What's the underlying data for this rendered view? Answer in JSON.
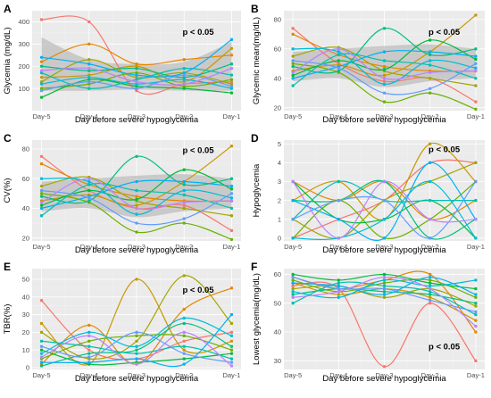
{
  "figure": {
    "days": [
      "Day-5",
      "Day-4",
      "Day-3",
      "Day-2",
      "Day-1"
    ],
    "palette": [
      "#F8766D",
      "#E58700",
      "#C99800",
      "#A3A500",
      "#6BB100",
      "#00BA38",
      "#00BF7D",
      "#00C0AF",
      "#00BCD8",
      "#00B0F6",
      "#619CFF",
      "#B983FF",
      "#E76BF3",
      "#FD61D1",
      "#FF67A4",
      "#9590FF",
      "#39B600",
      "#D89000"
    ]
  },
  "chart_data": [
    {
      "panel": "A",
      "type": "line",
      "ylabel": "Glycemia (mg/dL)",
      "xlabel": "Day before severe hypoglycemia",
      "x_ticks": [
        "Day-5",
        "Day-4",
        "Day-3",
        "Day-2",
        "Day-1"
      ],
      "ylim": [
        0,
        450
      ],
      "y_ticks": [
        100,
        200,
        300,
        400
      ],
      "annotation": "p < 0.05",
      "band": {
        "lower": [
          90,
          90,
          95,
          90,
          90
        ],
        "upper": [
          330,
          230,
          210,
          220,
          310
        ]
      },
      "series": [
        {
          "values": [
            410,
            400,
            90,
            120,
            130
          ]
        },
        {
          "values": [
            220,
            300,
            210,
            230,
            250
          ]
        },
        {
          "values": [
            150,
            160,
            200,
            130,
            280
          ]
        },
        {
          "values": [
            130,
            230,
            150,
            170,
            120
          ]
        },
        {
          "values": [
            100,
            120,
            170,
            110,
            140
          ]
        },
        {
          "values": [
            60,
            140,
            110,
            100,
            80
          ]
        },
        {
          "values": [
            200,
            180,
            190,
            150,
            210
          ]
        },
        {
          "values": [
            170,
            100,
            140,
            190,
            160
          ]
        },
        {
          "values": [
            120,
            150,
            120,
            140,
            100
          ]
        },
        {
          "values": [
            240,
            210,
            160,
            170,
            320
          ]
        },
        {
          "values": [
            90,
            130,
            100,
            160,
            110
          ]
        },
        {
          "values": [
            180,
            190,
            130,
            120,
            190
          ]
        }
      ]
    },
    {
      "panel": "B",
      "type": "line",
      "ylabel": "Glycemic mean(mg/dL)",
      "xlabel": "Day before severe hypoglycemia",
      "x_ticks": [
        "Day-5",
        "Day-4",
        "Day-3",
        "Day-2",
        "Day-1"
      ],
      "ylim": [
        18,
        86
      ],
      "y_ticks": [
        20,
        40,
        60,
        80
      ],
      "annotation": "p < 0.05",
      "band": {
        "lower": [
          38,
          40,
          34,
          38,
          40
        ],
        "upper": [
          58,
          60,
          62,
          63,
          60
        ]
      },
      "series": [
        {
          "values": [
            74,
            50,
            38,
            40,
            24
          ]
        },
        {
          "values": [
            70,
            56,
            48,
            45,
            45
          ]
        },
        {
          "values": [
            45,
            49,
            42,
            58,
            83
          ]
        },
        {
          "values": [
            55,
            61,
            45,
            40,
            35
          ]
        },
        {
          "values": [
            50,
            44,
            24,
            30,
            19
          ]
        },
        {
          "values": [
            42,
            52,
            46,
            66,
            53
          ]
        },
        {
          "values": [
            48,
            45,
            74,
            56,
            60
          ]
        },
        {
          "values": [
            35,
            56,
            52,
            49,
            40
          ]
        },
        {
          "values": [
            60,
            58,
            36,
            52,
            47
          ]
        },
        {
          "values": [
            40,
            48,
            58,
            58,
            55
          ]
        },
        {
          "values": [
            52,
            47,
            30,
            33,
            50
          ]
        },
        {
          "values": [
            44,
            60,
            40,
            44,
            45
          ]
        }
      ]
    },
    {
      "panel": "C",
      "type": "line",
      "ylabel": "CV(%)",
      "xlabel": "Day before severe hypoglycemia",
      "x_ticks": [
        "Day-5",
        "Day-4",
        "Day-3",
        "Day-2",
        "Day-1"
      ],
      "ylim": [
        18,
        86
      ],
      "y_ticks": [
        20,
        40,
        60,
        80
      ],
      "annotation": "p < 0.05",
      "band": {
        "lower": [
          38,
          40,
          34,
          38,
          40
        ],
        "upper": [
          58,
          60,
          62,
          63,
          60
        ]
      },
      "series": [
        {
          "values": [
            75,
            52,
            40,
            42,
            25
          ]
        },
        {
          "values": [
            70,
            56,
            48,
            45,
            45
          ]
        },
        {
          "values": [
            45,
            49,
            42,
            58,
            82
          ]
        },
        {
          "values": [
            55,
            61,
            45,
            40,
            35
          ]
        },
        {
          "values": [
            50,
            44,
            24,
            30,
            19
          ]
        },
        {
          "values": [
            42,
            52,
            46,
            66,
            53
          ]
        },
        {
          "values": [
            48,
            45,
            75,
            56,
            60
          ]
        },
        {
          "values": [
            35,
            56,
            52,
            49,
            40
          ]
        },
        {
          "values": [
            60,
            58,
            36,
            52,
            47
          ]
        },
        {
          "values": [
            40,
            48,
            58,
            58,
            55
          ]
        },
        {
          "values": [
            52,
            47,
            30,
            33,
            50
          ]
        },
        {
          "values": [
            44,
            60,
            40,
            44,
            45
          ]
        }
      ]
    },
    {
      "panel": "D",
      "type": "line",
      "ylabel": "Hypoglycemia",
      "xlabel": "Day before severe hypoglycemia",
      "x_ticks": [
        "Day-5",
        "Day-4",
        "Day-3",
        "Day-2",
        "Day-1"
      ],
      "ylim": [
        -0.15,
        5.2
      ],
      "y_ticks": [
        0,
        1,
        2,
        3,
        4,
        5
      ],
      "annotation": "p < 0.05",
      "series": [
        {
          "values": [
            0,
            1,
            2,
            4,
            4
          ]
        },
        {
          "values": [
            3,
            2,
            3,
            1,
            2
          ]
        },
        {
          "values": [
            2,
            3,
            1,
            5,
            3
          ]
        },
        {
          "values": [
            1,
            0,
            2,
            3,
            4
          ]
        },
        {
          "values": [
            0,
            2,
            0,
            1,
            3
          ]
        },
        {
          "values": [
            3,
            1,
            1,
            2,
            0
          ]
        },
        {
          "values": [
            2,
            2,
            3,
            0,
            1
          ]
        },
        {
          "values": [
            1,
            3,
            2,
            2,
            2
          ]
        },
        {
          "values": [
            0,
            0,
            1,
            3,
            0
          ]
        },
        {
          "values": [
            2,
            1,
            0,
            4,
            1
          ]
        },
        {
          "values": [
            1,
            2,
            2,
            0,
            3
          ]
        },
        {
          "values": [
            3,
            0,
            3,
            1,
            1
          ]
        }
      ]
    },
    {
      "panel": "E",
      "type": "line",
      "ylabel": "TBR(%)",
      "xlabel": "Day before severe hypoglycemia",
      "x_ticks": [
        "Day-5",
        "Day-4",
        "Day-3",
        "Day-2",
        "Day-1"
      ],
      "ylim": [
        -1,
        56
      ],
      "y_ticks": [
        0,
        10,
        20,
        30,
        40,
        50
      ],
      "annotation": "p < 0.05",
      "series": [
        {
          "values": [
            38,
            10,
            5,
            15,
            20
          ]
        },
        {
          "values": [
            2,
            24,
            2,
            33,
            45
          ]
        },
        {
          "values": [
            25,
            2,
            50,
            10,
            15
          ]
        },
        {
          "values": [
            20,
            5,
            15,
            52,
            25
          ]
        },
        {
          "values": [
            5,
            15,
            18,
            18,
            10
          ]
        },
        {
          "values": [
            10,
            2,
            3,
            5,
            8
          ]
        },
        {
          "values": [
            1,
            8,
            10,
            25,
            12
          ]
        },
        {
          "values": [
            15,
            12,
            8,
            12,
            5
          ]
        },
        {
          "values": [
            8,
            20,
            12,
            28,
            18
          ]
        },
        {
          "values": [
            3,
            3,
            5,
            2,
            30
          ]
        },
        {
          "values": [
            12,
            6,
            20,
            8,
            3
          ]
        },
        {
          "values": [
            6,
            18,
            2,
            20,
            1
          ]
        }
      ]
    },
    {
      "panel": "F",
      "type": "line",
      "ylabel": "Lowest glycemia(mg/dL)",
      "xlabel": "Day before severe hypoglycemia",
      "x_ticks": [
        "Day-5",
        "Day-4",
        "Day-3",
        "Day-2",
        "Day-1"
      ],
      "ylim": [
        27,
        62
      ],
      "y_ticks": [
        30,
        40,
        50,
        60
      ],
      "annotation": "p < 0.05",
      "series": [
        {
          "values": [
            56,
            55,
            28,
            50,
            30
          ]
        },
        {
          "values": [
            59,
            55,
            58,
            60,
            40
          ]
        },
        {
          "values": [
            57,
            53,
            55,
            52,
            44
          ]
        },
        {
          "values": [
            55,
            56,
            52,
            55,
            49
          ]
        },
        {
          "values": [
            58,
            54,
            57,
            58,
            52
          ]
        },
        {
          "values": [
            60,
            58,
            60,
            57,
            55
          ]
        },
        {
          "values": [
            53,
            55,
            54,
            53,
            50
          ]
        },
        {
          "values": [
            50,
            57,
            56,
            54,
            46
          ]
        },
        {
          "values": [
            54,
            52,
            58,
            56,
            58
          ]
        },
        {
          "values": [
            57,
            56,
            53,
            59,
            53
          ]
        },
        {
          "values": [
            59,
            55,
            55,
            51,
            47
          ]
        },
        {
          "values": [
            52,
            54,
            59,
            55,
            42
          ]
        }
      ]
    }
  ]
}
